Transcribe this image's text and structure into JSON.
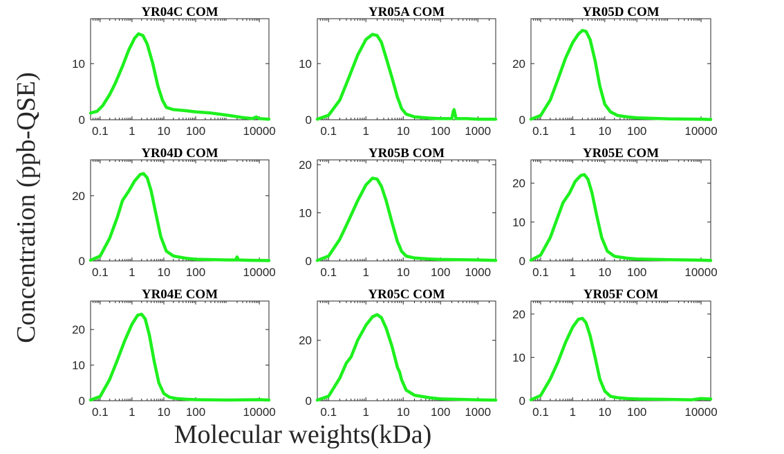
{
  "figure": {
    "ylabel": "Concentration (ppb-QSE)",
    "xlabel": "Molecular weights(kDa)",
    "series_color": "#1ef01e"
  },
  "chart_data": [
    {
      "type": "line",
      "title": "YR04C COM",
      "xscale": "log",
      "xlim": [
        0.05,
        20000
      ],
      "ylim": [
        0,
        18
      ],
      "xticks": [
        "0.1",
        "1",
        "10",
        "100",
        "10000"
      ],
      "xtick_values": [
        0.1,
        1,
        10,
        100,
        10000
      ],
      "yticks": [
        0,
        10
      ],
      "xlabel": "",
      "ylabel": "",
      "series": [
        {
          "x": [
            0.05,
            0.08,
            0.12,
            0.2,
            0.3,
            0.5,
            0.8,
            1.2,
            1.6,
            2.2,
            3,
            4.5,
            6.5,
            9,
            12,
            20,
            50,
            100,
            300,
            1000,
            3000,
            6000,
            8000,
            10000,
            20000
          ],
          "y": [
            1.2,
            1.5,
            2.5,
            4.5,
            6.5,
            9.5,
            12.5,
            14.5,
            15.3,
            15.0,
            13.5,
            10.0,
            6.0,
            3.5,
            2.2,
            1.8,
            1.6,
            1.4,
            1.2,
            0.8,
            0.4,
            0.2,
            0.5,
            0.2,
            0.1
          ]
        }
      ]
    },
    {
      "type": "line",
      "title": "YR05A COM",
      "xscale": "log",
      "xlim": [
        0.05,
        3000
      ],
      "ylim": [
        0,
        18
      ],
      "xticks": [
        "0.1",
        "1",
        "10",
        "100",
        "1000"
      ],
      "xtick_values": [
        0.1,
        1,
        10,
        100,
        1000
      ],
      "yticks": [
        0,
        10
      ],
      "xlabel": "",
      "ylabel": "",
      "series": [
        {
          "x": [
            0.05,
            0.1,
            0.2,
            0.35,
            0.6,
            1,
            1.5,
            2,
            2.6,
            3.5,
            5,
            7,
            8,
            9,
            12,
            20,
            50,
            100,
            200,
            220,
            230,
            260,
            500,
            1000,
            3000
          ],
          "y": [
            0.1,
            0.8,
            3.5,
            7.5,
            11.5,
            14.3,
            15.2,
            15.0,
            13.8,
            11.0,
            7.5,
            4.0,
            3.0,
            2.0,
            1.0,
            0.5,
            0.3,
            0.2,
            0.2,
            1.5,
            1.8,
            0.2,
            0.2,
            0.1,
            0.1
          ]
        }
      ]
    },
    {
      "type": "line",
      "title": "YR05D COM",
      "xscale": "log",
      "xlim": [
        0.05,
        20000
      ],
      "ylim": [
        0,
        36
      ],
      "xticks": [
        "0.1",
        "1",
        "10",
        "100",
        "10000"
      ],
      "xtick_values": [
        0.1,
        1,
        10,
        100,
        10000
      ],
      "yticks": [
        0,
        20
      ],
      "xlabel": "",
      "ylabel": "",
      "series": [
        {
          "x": [
            0.05,
            0.1,
            0.2,
            0.35,
            0.6,
            1,
            1.5,
            2,
            2.6,
            3.5,
            5,
            7,
            10,
            15,
            25,
            50,
            100,
            1000,
            10000,
            20000
          ],
          "y": [
            0.2,
            1.5,
            7.0,
            14.5,
            22.0,
            27.5,
            30.5,
            31.8,
            31.5,
            28.5,
            21.0,
            12.0,
            5.5,
            2.8,
            1.5,
            1.0,
            0.7,
            0.3,
            0.2,
            0.1
          ]
        }
      ]
    },
    {
      "type": "line",
      "title": "YR04D COM",
      "xscale": "log",
      "xlim": [
        0.05,
        20000
      ],
      "ylim": [
        0,
        31
      ],
      "xticks": [
        "0.1",
        "1",
        "10",
        "100",
        "10000"
      ],
      "xtick_values": [
        0.1,
        1,
        10,
        100,
        10000
      ],
      "yticks": [
        0,
        20
      ],
      "xlabel": "",
      "ylabel": "",
      "series": [
        {
          "x": [
            0.05,
            0.1,
            0.2,
            0.35,
            0.5,
            0.8,
            1.2,
            1.8,
            2.3,
            3,
            4,
            5.5,
            8,
            12,
            20,
            50,
            100,
            1000,
            1800,
            2000,
            2200,
            5000,
            20000
          ],
          "y": [
            0.2,
            1.5,
            7.0,
            13.5,
            18.5,
            21.5,
            24.5,
            26.5,
            26.8,
            25.5,
            21.5,
            15.0,
            7.5,
            3.0,
            1.5,
            0.8,
            0.5,
            0.3,
            0.3,
            1.2,
            0.3,
            0.2,
            0.1
          ]
        }
      ]
    },
    {
      "type": "line",
      "title": "YR05B COM",
      "xscale": "log",
      "xlim": [
        0.05,
        3000
      ],
      "ylim": [
        0,
        21
      ],
      "xticks": [
        "0.1",
        "1",
        "10",
        "100",
        "1000"
      ],
      "xtick_values": [
        0.1,
        1,
        10,
        100,
        1000
      ],
      "yticks": [
        0,
        10,
        20
      ],
      "xlabel": "",
      "ylabel": "",
      "series": [
        {
          "x": [
            0.05,
            0.1,
            0.2,
            0.35,
            0.6,
            1,
            1.5,
            2,
            2.6,
            3.5,
            5,
            7,
            8,
            9,
            12,
            20,
            50,
            100,
            1000,
            3000
          ],
          "y": [
            0.1,
            1.0,
            4.5,
            8.5,
            12.5,
            15.8,
            17.2,
            17.0,
            15.5,
            12.5,
            8.0,
            4.0,
            3.0,
            2.0,
            1.0,
            0.6,
            0.4,
            0.3,
            0.2,
            0.1
          ]
        }
      ]
    },
    {
      "type": "line",
      "title": "YR05E COM",
      "xscale": "log",
      "xlim": [
        0.05,
        20000
      ],
      "ylim": [
        0,
        26
      ],
      "xticks": [
        "0.1",
        "1",
        "10",
        "100",
        "10000"
      ],
      "xtick_values": [
        0.1,
        1,
        10,
        100,
        10000
      ],
      "yticks": [
        0,
        10,
        20
      ],
      "xlabel": "",
      "ylabel": "",
      "series": [
        {
          "x": [
            0.05,
            0.1,
            0.2,
            0.35,
            0.5,
            0.8,
            1.2,
            1.8,
            2.3,
            3,
            4,
            5.5,
            8,
            12,
            20,
            50,
            100,
            1000,
            10000,
            20000
          ],
          "y": [
            0.2,
            1.5,
            6.0,
            11.5,
            15.0,
            17.5,
            20.5,
            22.0,
            22.2,
            21.0,
            17.5,
            12.0,
            6.0,
            2.5,
            1.2,
            0.7,
            0.5,
            0.3,
            0.2,
            0.1
          ]
        }
      ]
    },
    {
      "type": "line",
      "title": "YR04E COM",
      "xscale": "log",
      "xlim": [
        0.05,
        20000
      ],
      "ylim": [
        0,
        28
      ],
      "xticks": [
        "0.1",
        "1",
        "10",
        "100",
        "10000"
      ],
      "xtick_values": [
        0.1,
        1,
        10,
        100,
        10000
      ],
      "yticks": [
        0,
        10,
        20
      ],
      "xlabel": "",
      "ylabel": "",
      "series": [
        {
          "x": [
            0.05,
            0.1,
            0.2,
            0.35,
            0.6,
            1,
            1.5,
            2,
            2.6,
            3.5,
            5,
            7,
            10,
            15,
            25,
            50,
            100,
            1000,
            10000,
            20000
          ],
          "y": [
            0.2,
            1.2,
            6.0,
            11.5,
            17.0,
            21.5,
            24.0,
            24.3,
            23.0,
            18.5,
            11.0,
            5.0,
            2.0,
            1.0,
            0.6,
            0.4,
            0.3,
            0.2,
            0.3,
            0.2
          ]
        }
      ]
    },
    {
      "type": "line",
      "title": "YR05C COM",
      "xscale": "log",
      "xlim": [
        0.05,
        3000
      ],
      "ylim": [
        0,
        33
      ],
      "xticks": [
        "0.1",
        "1",
        "10",
        "100",
        "1000"
      ],
      "xtick_values": [
        0.1,
        1,
        10,
        100,
        1000
      ],
      "yticks": [
        0,
        20
      ],
      "xlabel": "",
      "ylabel": "",
      "series": [
        {
          "x": [
            0.05,
            0.1,
            0.2,
            0.3,
            0.4,
            0.6,
            1,
            1.5,
            2,
            2.6,
            3.5,
            5,
            7,
            8,
            9,
            12,
            20,
            50,
            100,
            1000,
            3000
          ],
          "y": [
            0.2,
            1.5,
            7.5,
            12.5,
            14.5,
            20.0,
            25.0,
            27.8,
            28.5,
            27.5,
            24.0,
            18.0,
            11.0,
            9.5,
            7.0,
            3.5,
            1.8,
            1.0,
            0.6,
            0.3,
            0.2
          ]
        }
      ]
    },
    {
      "type": "line",
      "title": "YR05F COM",
      "xscale": "log",
      "xlim": [
        0.05,
        20000
      ],
      "ylim": [
        0,
        23
      ],
      "xticks": [
        "0.1",
        "1",
        "10",
        "100",
        "10000"
      ],
      "xtick_values": [
        0.1,
        1,
        10,
        100,
        10000
      ],
      "yticks": [
        0,
        10,
        20
      ],
      "xlabel": "",
      "ylabel": "",
      "series": [
        {
          "x": [
            0.05,
            0.1,
            0.2,
            0.35,
            0.6,
            1,
            1.5,
            2,
            2.6,
            3.5,
            5,
            7,
            10,
            15,
            25,
            50,
            100,
            1000,
            5000,
            10000,
            20000
          ],
          "y": [
            0.2,
            1.2,
            5.0,
            9.0,
            13.5,
            17.0,
            18.8,
            19.0,
            18.0,
            15.0,
            10.0,
            5.0,
            2.2,
            1.0,
            0.7,
            0.5,
            0.4,
            0.3,
            0.2,
            0.5,
            0.4
          ]
        }
      ]
    }
  ]
}
